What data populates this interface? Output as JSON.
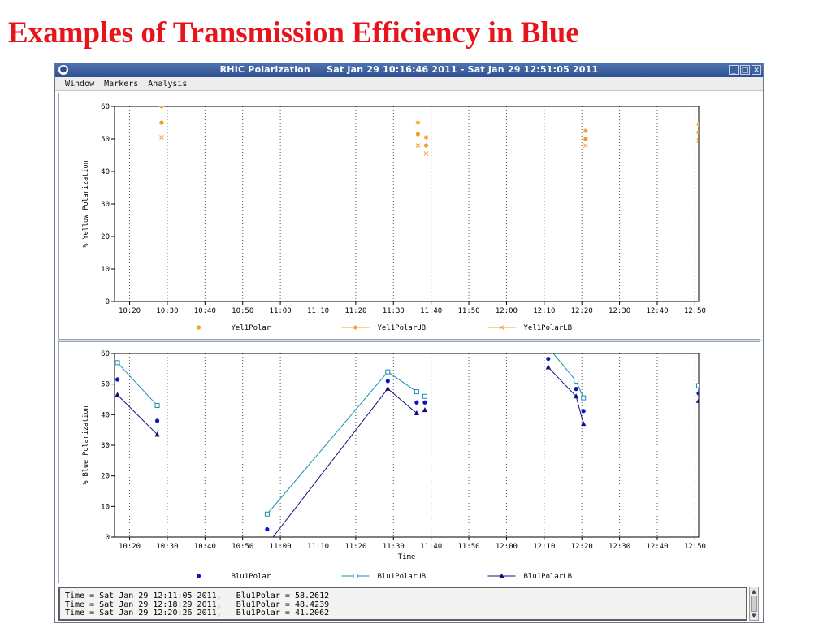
{
  "slide": {
    "title": "Examples of Transmission Efficiency  in Blue"
  },
  "window": {
    "title": "RHIC Polarization     Sat Jan 29 10:16:46 2011 - Sat Jan 29 12:51:05 2011",
    "icon": "app-icon",
    "buttons": [
      "_",
      "□",
      "✕"
    ],
    "menu": [
      "Window",
      "Markers",
      "Analysis"
    ]
  },
  "status_lines": [
    "Time = Sat Jan 29 12:11:05 2011,   Blu1Polar = 58.2612",
    "Time = Sat Jan 29 12:18:29 2011,   Blu1Polar = 48.4239",
    "Time = Sat Jan 29 12:20:26 2011,   Blu1Polar = 41.2062"
  ],
  "chart_data": [
    {
      "type": "scatter",
      "ylabel": "% Yellow Polarization",
      "xlabel": "",
      "ylim": [
        0,
        60
      ],
      "yticks": [
        "0",
        "10",
        "20",
        "30",
        "40",
        "50",
        "60"
      ],
      "xlim": [
        "10:16",
        "12:51"
      ],
      "xticks": [
        "10:20",
        "10:30",
        "10:40",
        "10:50",
        "11:00",
        "11:10",
        "11:20",
        "11:30",
        "11:40",
        "11:50",
        "12:00",
        "12:10",
        "12:20",
        "12:30",
        "12:40",
        "12:50"
      ],
      "grid": "vertical dotted",
      "legend_position": "bottom",
      "series": [
        {
          "name": "Yel1Polar",
          "marker": "circle",
          "color": "#f0a020",
          "connected": false,
          "points": [
            [
              "10:28:30",
              55.0
            ],
            [
              "11:36:30",
              51.5
            ],
            [
              "11:38:40",
              48.0
            ],
            [
              "12:21:00",
              50.0
            ],
            [
              "12:51:00",
              52.0
            ]
          ]
        },
        {
          "name": "Yel1PolarUB",
          "marker": "star",
          "color": "#f0a020",
          "connected": false,
          "points": [
            [
              "10:28:30",
              60.0
            ],
            [
              "11:36:30",
              55.0
            ],
            [
              "11:38:40",
              50.5
            ],
            [
              "12:21:00",
              52.5
            ],
            [
              "12:51:00",
              54.5
            ]
          ]
        },
        {
          "name": "Yel1PolarLB",
          "marker": "x",
          "color": "#f0a020",
          "connected": false,
          "points": [
            [
              "10:28:30",
              50.5
            ],
            [
              "11:36:30",
              48.0
            ],
            [
              "11:38:40",
              45.5
            ],
            [
              "12:21:00",
              48.0
            ],
            [
              "12:51:00",
              49.5
            ]
          ]
        }
      ]
    },
    {
      "type": "line",
      "ylabel": "% Blue Polarization",
      "xlabel": "Time",
      "ylim": [
        0,
        60
      ],
      "yticks": [
        "0",
        "10",
        "20",
        "30",
        "40",
        "50",
        "60"
      ],
      "xlim": [
        "10:16",
        "12:51"
      ],
      "xticks": [
        "10:20",
        "10:30",
        "10:40",
        "10:50",
        "11:00",
        "11:10",
        "11:20",
        "11:30",
        "11:40",
        "11:50",
        "12:00",
        "12:10",
        "12:20",
        "12:30",
        "12:40",
        "12:50"
      ],
      "grid": "vertical dotted",
      "legend_position": "bottom",
      "series": [
        {
          "name": "Blu1Polar",
          "marker": "circle",
          "color": "#0a14c8",
          "connected": false,
          "points": [
            [
              "10:16:46",
              51.5
            ],
            [
              "10:27:20",
              38.0
            ],
            [
              "10:56:30",
              2.5
            ],
            [
              "11:28:30",
              51.0
            ],
            [
              "11:36:10",
              44.0
            ],
            [
              "11:38:20",
              44.0
            ],
            [
              "12:11:05",
              58.2612
            ],
            [
              "12:18:29",
              48.4239
            ],
            [
              "12:20:26",
              41.2062
            ],
            [
              "12:51:00",
              47.0
            ]
          ]
        },
        {
          "name": "Blu1PolarUB",
          "marker": "open-square",
          "color": "#1a8fb0",
          "connected": true,
          "segments": [
            [
              [
                "10:16:46",
                57.0
              ],
              [
                "10:27:20",
                43.0
              ]
            ],
            [
              [
                "10:56:30",
                7.5
              ],
              [
                "11:28:30",
                54.0
              ],
              [
                "11:36:10",
                47.5
              ]
            ],
            [
              [
                "11:38:20",
                46.0
              ]
            ],
            [
              [
                "12:11:05",
                62.0
              ],
              [
                "12:18:29",
                51.0
              ],
              [
                "12:20:26",
                45.5
              ]
            ],
            [
              [
                "12:51:00",
                49.5
              ]
            ]
          ]
        },
        {
          "name": "Blu1PolarLB",
          "marker": "triangle",
          "color": "#10107a",
          "connected": true,
          "segments": [
            [
              [
                "10:16:46",
                46.5
              ],
              [
                "10:27:20",
                33.5
              ]
            ],
            [
              [
                "10:56:30",
                -2.5
              ],
              [
                "11:28:30",
                48.5
              ],
              [
                "11:36:10",
                40.5
              ]
            ],
            [
              [
                "11:38:20",
                41.5
              ]
            ],
            [
              [
                "12:11:05",
                55.5
              ],
              [
                "12:18:29",
                46.0
              ],
              [
                "12:20:26",
                37.0
              ]
            ],
            [
              [
                "12:51:00",
                44.5
              ]
            ]
          ]
        }
      ]
    }
  ]
}
